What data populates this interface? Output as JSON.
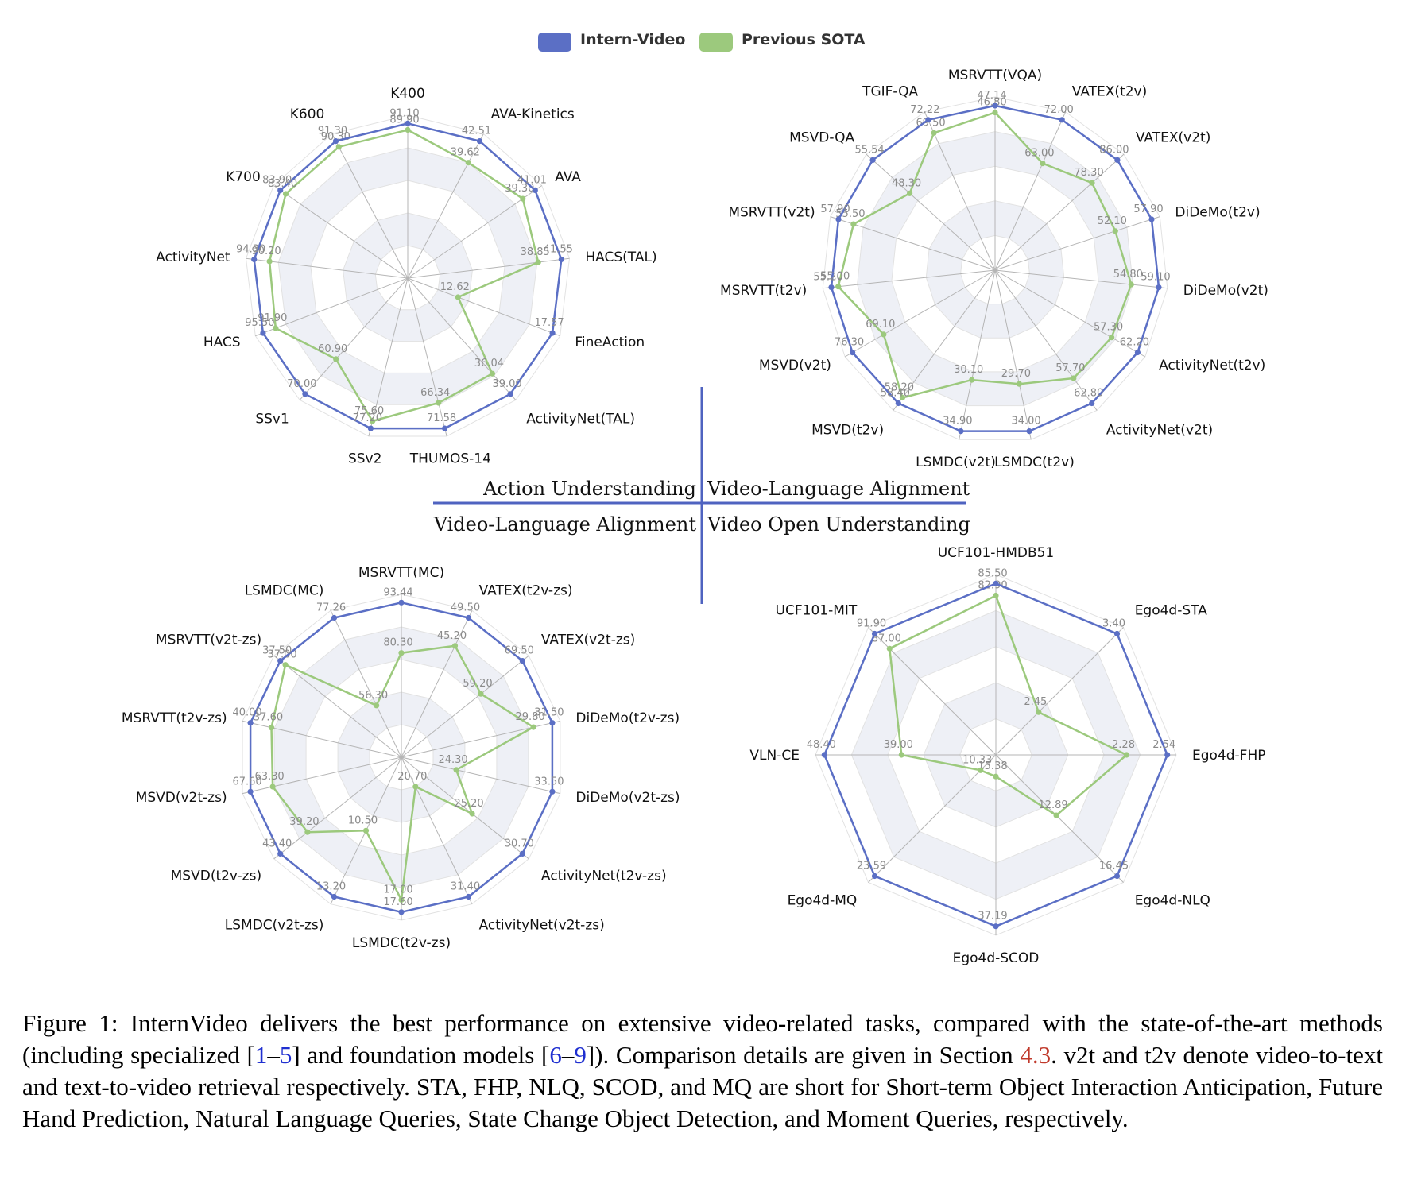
{
  "legend": [
    {
      "name": "Intern-Video",
      "color": "#5b6fc5"
    },
    {
      "name": "Previous SOTA",
      "color": "#9cc97d"
    }
  ],
  "quadrant_labels": {
    "top_left": "Action Understanding",
    "top_right": "Video-Language Alignment",
    "bottom_left": "Video-Language Alignment",
    "bottom_right": "Video Open Understanding"
  },
  "chart_data": [
    {
      "type": "radar",
      "axes": [
        "K400",
        "AVA-Kinetics",
        "AVA",
        "HACS(TAL)",
        "FineAction",
        "ActivityNet(TAL)",
        "THUMOS-14",
        "SSv2",
        "SSv1",
        "HACS",
        "ActivityNet",
        "K700",
        "K600"
      ],
      "series": [
        {
          "name": "Intern-Video",
          "values": [
            "91.10",
            "42.51",
            "41.01",
            "41.55",
            "17.57",
            "39.00",
            "71.58",
            "77.20",
            "70.00",
            "95.50",
            "94.30",
            "83.90",
            "91.30"
          ]
        },
        {
          "name": "Previous SOTA",
          "values": [
            "89.90",
            "39.62",
            "39.30",
            "38.85",
            "12.62",
            "36.04",
            "66.34",
            "75.60",
            "60.90",
            "91.90",
            "90.20",
            "83.40",
            "90.30"
          ]
        }
      ]
    },
    {
      "type": "radar",
      "axes": [
        "MSRVTT(VQA)",
        "VATEX(t2v)",
        "VATEX(v2t)",
        "DiDeMo(t2v)",
        "DiDeMo(v2t)",
        "ActivityNet(t2v)",
        "ActivityNet(v2t)",
        "LSMDC(t2v)",
        "LSMDC(v2t)",
        "MSVD(t2v)",
        "MSVD(v2t)",
        "MSRVTT(t2v)",
        "MSRVTT(v2t)",
        "MSVD-QA",
        "TGIF-QA"
      ],
      "series": [
        {
          "name": "Intern-Video",
          "values": [
            "47.14",
            "72.00",
            "86.00",
            "57.90",
            "59.10",
            "62.20",
            "62.80",
            "34.00",
            "34.90",
            "58.40",
            "76.30",
            "55.20",
            "57.90",
            "55.54",
            "72.22"
          ]
        },
        {
          "name": "Previous SOTA",
          "values": [
            "46.80",
            "63.00",
            "78.30",
            "52.10",
            "54.80",
            "57.30",
            "57.70",
            "29.70",
            "30.10",
            "58.20",
            "69.10",
            "55.00",
            "55.50",
            "48.30",
            "69.50"
          ]
        }
      ]
    },
    {
      "type": "radar",
      "axes": [
        "MSRVTT(MC)",
        "VATEX(t2v-zs)",
        "VATEX(v2t-zs)",
        "DiDeMo(t2v-zs)",
        "DiDeMo(v2t-zs)",
        "ActivityNet(t2v-zs)",
        "ActivityNet(v2t-zs)",
        "LSMDC(t2v-zs)",
        "LSMDC(v2t-zs)",
        "MSVD(t2v-zs)",
        "MSVD(v2t-zs)",
        "MSRVTT(t2v-zs)",
        "MSRVTT(v2t-zs)",
        "LSMDC(MC)"
      ],
      "series": [
        {
          "name": "Intern-Video",
          "values": [
            "93.44",
            "49.50",
            "69.50",
            "31.50",
            "33.50",
            "30.70",
            "31.40",
            "17.60",
            "13.20",
            "43.40",
            "67.60",
            "40.00",
            "37.50",
            "77.26"
          ]
        },
        {
          "name": "Previous SOTA",
          "values": [
            "80.30",
            "45.20",
            "59.20",
            "29.80",
            "24.30",
            "25.20",
            "20.70",
            "17.00",
            "10.50",
            "39.20",
            "63.30",
            "37.60",
            "37.00",
            "56.30"
          ]
        }
      ]
    },
    {
      "type": "radar",
      "axes": [
        "UCF101-HMDB51",
        "Ego4d-STA",
        "Ego4d-FHP",
        "Ego4d-NLQ",
        "Ego4d-SCOD",
        "Ego4d-MQ",
        "VLN-CE",
        "UCF101-MIT"
      ],
      "series": [
        {
          "name": "Intern-Video",
          "values": [
            "85.50",
            "3.40",
            "2.54",
            "16.45",
            "37.19",
            "23.59",
            "48.40",
            "91.90"
          ]
        },
        {
          "name": "Previous SOTA",
          "values": [
            "82.90",
            "2.45",
            "2.28",
            "12.89",
            "15.38",
            "10.33",
            "39.00",
            "87.00"
          ]
        }
      ]
    }
  ],
  "caption": {
    "part1": "Figure 1: InternVideo delivers the best performance on extensive video-related tasks, compared with the state-of-the-art methods (including specialized [",
    "ref1": "1",
    "dash1": "–",
    "ref2": "5",
    "part2": "] and foundation models [",
    "ref3": "6",
    "dash2": "–",
    "ref4": "9",
    "part3": "]). Comparison details are given in Section ",
    "section": "4.3",
    "part4": ". v2t and t2v denote video-to-text and text-to-video retrieval respectively. STA, FHP, NLQ, SCOD, and MQ are short for Short-term Object Interaction Anticipation, Future Hand Prediction, Natural Language Queries, State Change Object Detection, and Moment Queries, respectively."
  }
}
